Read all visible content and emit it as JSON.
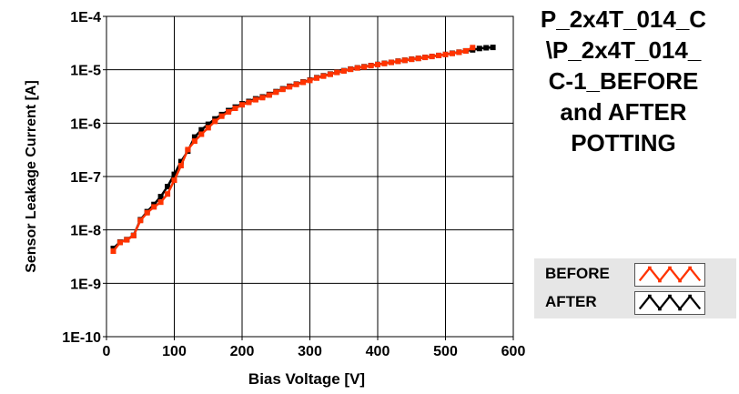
{
  "chart_data": {
    "type": "line",
    "title": [
      "P_2x4T_014_C",
      "\\P_2x4T_014_",
      "C-1_BEFORE",
      "and AFTER",
      "POTTING"
    ],
    "xlabel": "Bias Voltage [V]",
    "ylabel": "Sensor Leakage Current [A]",
    "xlim": [
      0,
      600
    ],
    "ylim": [
      1e-10,
      0.0001
    ],
    "yscale": "log",
    "grid": true,
    "legend_position": "bottom-right",
    "x_ticks": [
      {
        "v": 0,
        "label": "0"
      },
      {
        "v": 100,
        "label": "100"
      },
      {
        "v": 200,
        "label": "200"
      },
      {
        "v": 300,
        "label": "300"
      },
      {
        "v": 400,
        "label": "400"
      },
      {
        "v": 500,
        "label": "500"
      },
      {
        "v": 600,
        "label": "600"
      }
    ],
    "y_ticks": [
      {
        "v": 1e-10,
        "label": "1E-10"
      },
      {
        "v": 1e-09,
        "label": "1E-9"
      },
      {
        "v": 1e-08,
        "label": "1E-8"
      },
      {
        "v": 1e-07,
        "label": "1E-7"
      },
      {
        "v": 1e-06,
        "label": "1E-6"
      },
      {
        "v": 1e-05,
        "label": "1E-5"
      },
      {
        "v": 0.0001,
        "label": "1E-4"
      }
    ],
    "series": [
      {
        "name": "BEFORE",
        "color": "#ff3300",
        "x": [
          10,
          20,
          30,
          40,
          50,
          60,
          70,
          80,
          90,
          100,
          110,
          120,
          130,
          140,
          150,
          160,
          170,
          180,
          190,
          200,
          210,
          220,
          230,
          240,
          250,
          260,
          270,
          280,
          290,
          300,
          310,
          320,
          330,
          340,
          350,
          360,
          370,
          380,
          390,
          400,
          410,
          420,
          430,
          440,
          450,
          460,
          470,
          480,
          490,
          500,
          510,
          520,
          530,
          540
        ],
        "y": [
          4e-09,
          5.8e-09,
          6.5e-09,
          7.8e-09,
          1.5e-08,
          2.1e-08,
          2.7e-08,
          3.3e-08,
          4.7e-08,
          8.5e-08,
          1.6e-07,
          3.2e-07,
          4.6e-07,
          6.2e-07,
          8.2e-07,
          1.08e-06,
          1.35e-06,
          1.62e-06,
          1.9e-06,
          2.2e-06,
          2.45e-06,
          2.75e-06,
          3e-06,
          3.35e-06,
          3.8e-06,
          4.3e-06,
          4.8e-06,
          5.3e-06,
          5.8e-06,
          6.3e-06,
          7e-06,
          7.6e-06,
          8.2e-06,
          8.9e-06,
          9.5e-06,
          1.02e-05,
          1.08e-05,
          1.13e-05,
          1.19e-05,
          1.25e-05,
          1.31e-05,
          1.37e-05,
          1.44e-05,
          1.5e-05,
          1.57e-05,
          1.63e-05,
          1.7e-05,
          1.77e-05,
          1.85e-05,
          1.93e-05,
          2.02e-05,
          2.12e-05,
          2.25e-05,
          2.6e-05
        ]
      },
      {
        "name": "AFTER",
        "color": "#000000",
        "x": [
          10,
          20,
          30,
          40,
          50,
          60,
          70,
          80,
          90,
          100,
          110,
          120,
          130,
          140,
          150,
          160,
          170,
          180,
          190,
          200,
          210,
          220,
          230,
          240,
          250,
          260,
          270,
          280,
          290,
          300,
          310,
          320,
          330,
          340,
          350,
          360,
          370,
          380,
          390,
          400,
          410,
          420,
          430,
          440,
          450,
          460,
          470,
          480,
          490,
          500,
          510,
          520,
          530,
          540,
          550,
          560,
          570
        ],
        "y": [
          4.5e-09,
          5.9e-09,
          6.6e-09,
          7.9e-09,
          1.55e-08,
          2.2e-08,
          3e-08,
          4.2e-08,
          6.5e-08,
          1.1e-07,
          1.9e-07,
          3e-07,
          5.5e-07,
          7.5e-07,
          9.5e-07,
          1.2e-06,
          1.45e-06,
          1.72e-06,
          2e-06,
          2.3e-06,
          2.55e-06,
          2.85e-06,
          3.1e-06,
          3.45e-06,
          3.9e-06,
          4.4e-06,
          4.9e-06,
          5.4e-06,
          5.9e-06,
          6.4e-06,
          7.1e-06,
          7.7e-06,
          8.3e-06,
          9e-06,
          9.6e-06,
          1.03e-05,
          1.09e-05,
          1.14e-05,
          1.2e-05,
          1.26e-05,
          1.32e-05,
          1.38e-05,
          1.45e-05,
          1.51e-05,
          1.58e-05,
          1.64e-05,
          1.71e-05,
          1.78e-05,
          1.86e-05,
          1.94e-05,
          2.04e-05,
          2.14e-05,
          2.26e-05,
          2.36e-05,
          2.5e-05,
          2.58e-05,
          2.62e-05
        ]
      }
    ]
  }
}
